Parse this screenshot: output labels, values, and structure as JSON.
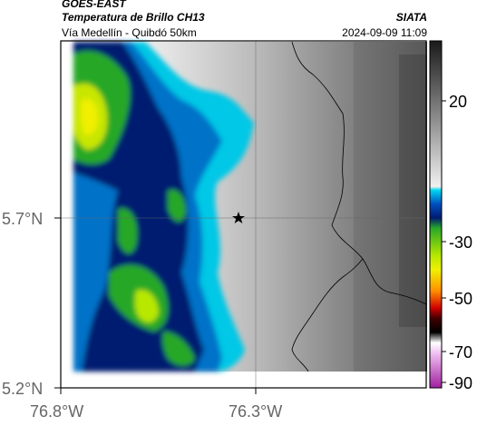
{
  "header": {
    "satellite": "GOES-EAST",
    "product": "Temperatura de Brillo CH13",
    "region": "Vía Medellín - Quibdó 50km",
    "agency": "SIATA",
    "datetime": "2024-09-09 11:09"
  },
  "axes": {
    "y_ticks": [
      {
        "label": "5.7°N",
        "value": 5.7
      },
      {
        "label": "5.2°N",
        "value": 5.2
      }
    ],
    "x_ticks": [
      {
        "label": "76.8°W",
        "value": -76.8
      },
      {
        "label": "76.3°W",
        "value": -76.3
      }
    ],
    "gridlines": true
  },
  "marker": {
    "icon": "star-icon",
    "lat": 5.7,
    "lon": -76.35
  },
  "colorbar": {
    "position": "right",
    "range": [
      -90,
      30
    ],
    "labels": [
      {
        "label": "20",
        "value": 20
      },
      {
        "label": "-30",
        "value": -30
      },
      {
        "label": "-50",
        "value": -50
      },
      {
        "label": "-70",
        "value": -70
      },
      {
        "label": "-90",
        "value": -90
      }
    ]
  },
  "colors": {
    "warm_gray_dark": "#3a3a3a",
    "warm_gray_light": "#f0f0f0",
    "cold_cyan": "#00c8e6",
    "cold_blue": "#0050b4",
    "cold_navy": "#001a70",
    "cold_green": "#28a828",
    "cold_yellow": "#f0f000"
  }
}
